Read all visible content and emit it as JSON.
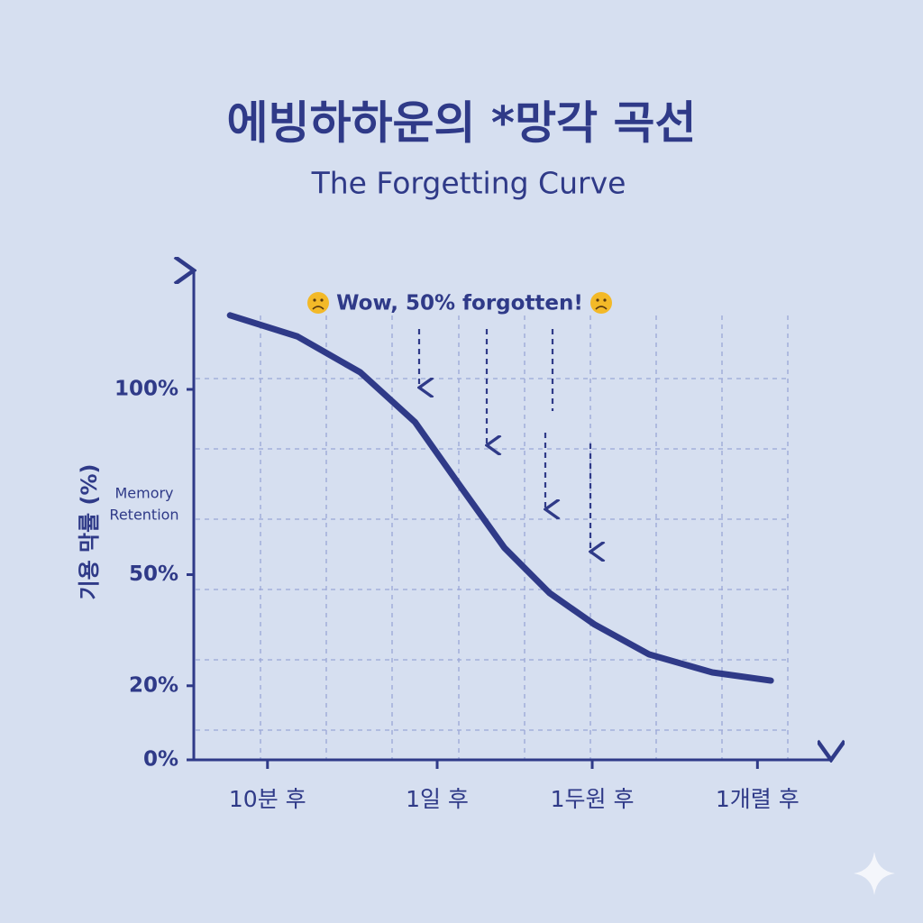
{
  "chart_data": {
    "type": "line",
    "title": "에빙하하운의 *망각 곡선",
    "subtitle": "The Forgetting Curve",
    "annotation": "Wow, 50% forgotten!",
    "y_label": "기용 막률 (%)",
    "y_label_en": [
      "Memory",
      "Retention"
    ],
    "x": [
      5.7,
      16.3,
      26.2,
      34.8,
      41.8,
      48.9,
      56.0,
      63.1,
      71.6,
      81.6,
      90.8
    ],
    "series": [
      {
        "color": "#2f3a88",
        "values": [
          120,
          114.3,
          104.6,
          91.2,
          74.2,
          57.2,
          45.0,
          36.5,
          28.5,
          23.6,
          21.4
        ]
      }
    ],
    "xlim": [
      0,
      100
    ],
    "xticks": [
      {
        "value": 11.6,
        "label": "10분 후"
      },
      {
        "value": 38.3,
        "label": "1일 후"
      },
      {
        "value": 62.7,
        "label": "1두원 후"
      },
      {
        "value": 88.7,
        "label": "1개렬 후"
      }
    ],
    "ylim": [
      0,
      130
    ],
    "yticks": [
      {
        "value": 100,
        "label": "100%"
      },
      {
        "value": 50,
        "label": "50%"
      },
      {
        "value": 20,
        "label": "20%"
      },
      {
        "value": 0,
        "label": "0%"
      }
    ]
  }
}
